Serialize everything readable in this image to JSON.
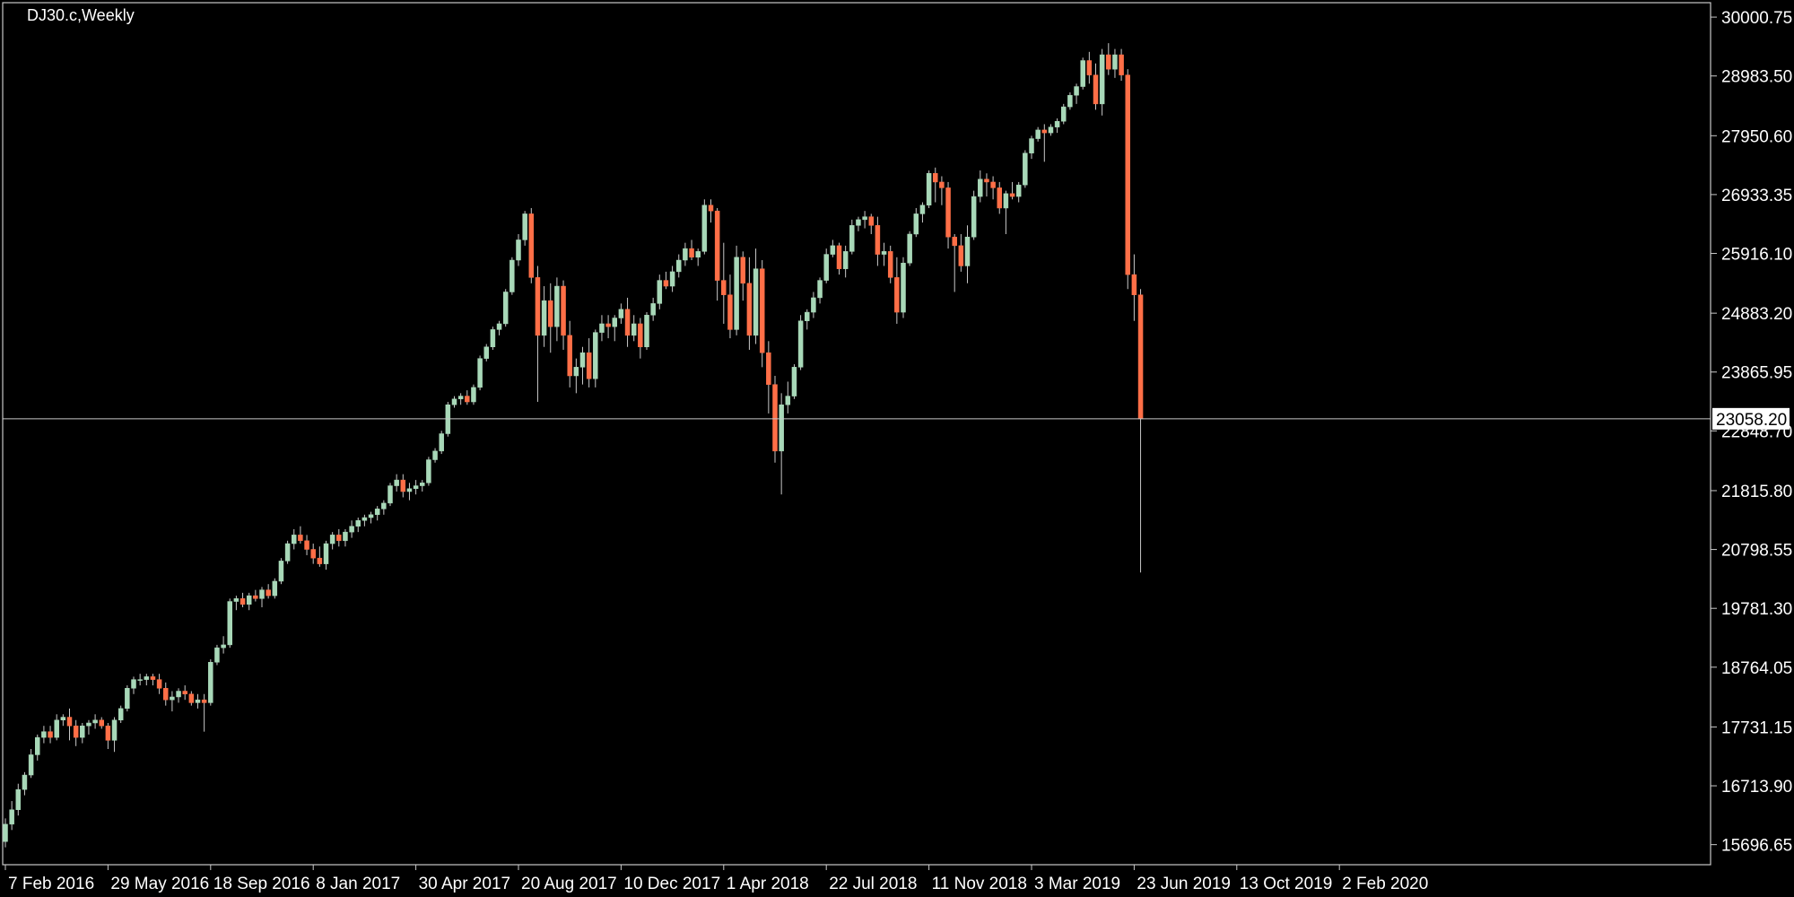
{
  "chart_data": {
    "type": "candlestick",
    "title": "DJ30.c,Weekly",
    "timeframe": "Weekly",
    "symbol": "DJ30.c",
    "background": "#000000",
    "colors": {
      "bull": "#a8d8b8",
      "bear": "#ff6f47",
      "wick": "#c8c8c8",
      "axis": "#c8c8c8",
      "price_line": "#c8c8c8",
      "price_label_bg": "#ffffff",
      "text": "#ffffff"
    },
    "ylim": [
      15350,
      30250
    ],
    "y_ticks": [
      {
        "value": 30000.75,
        "label": "30000.75"
      },
      {
        "value": 28983.5,
        "label": "28983.50"
      },
      {
        "value": 27950.6,
        "label": "27950.60"
      },
      {
        "value": 26933.35,
        "label": "26933.35"
      },
      {
        "value": 25916.1,
        "label": "25916.10"
      },
      {
        "value": 24883.2,
        "label": "24883.20"
      },
      {
        "value": 23865.95,
        "label": "23865.95"
      },
      {
        "value": 22848.7,
        "label": "22848.70"
      },
      {
        "value": 21815.8,
        "label": "21815.80"
      },
      {
        "value": 20798.55,
        "label": "20798.55"
      },
      {
        "value": 19781.3,
        "label": "19781.30"
      },
      {
        "value": 18764.05,
        "label": "18764.05"
      },
      {
        "value": 17731.15,
        "label": "17731.15"
      },
      {
        "value": 16713.9,
        "label": "16713.90"
      },
      {
        "value": 15696.65,
        "label": "15696.65"
      }
    ],
    "x_ticks": [
      {
        "index": 0,
        "label": "7 Feb 2016"
      },
      {
        "index": 16,
        "label": "29 May 2016"
      },
      {
        "index": 32,
        "label": "18 Sep 2016"
      },
      {
        "index": 48,
        "label": "8 Jan 2017"
      },
      {
        "index": 64,
        "label": "30 Apr 2017"
      },
      {
        "index": 80,
        "label": "20 Aug 2017"
      },
      {
        "index": 96,
        "label": "10 Dec 2017"
      },
      {
        "index": 112,
        "label": "1 Apr 2018"
      },
      {
        "index": 128,
        "label": "22 Jul 2018"
      },
      {
        "index": 144,
        "label": "11 Nov 2018"
      },
      {
        "index": 160,
        "label": "3 Mar 2019"
      },
      {
        "index": 176,
        "label": "23 Jun 2019"
      },
      {
        "index": 192,
        "label": "13 Oct 2019"
      },
      {
        "index": 208,
        "label": "2 Feb 2020"
      }
    ],
    "current_price": {
      "value": 23058.2,
      "label": "23058.20"
    },
    "candles": []
  }
}
